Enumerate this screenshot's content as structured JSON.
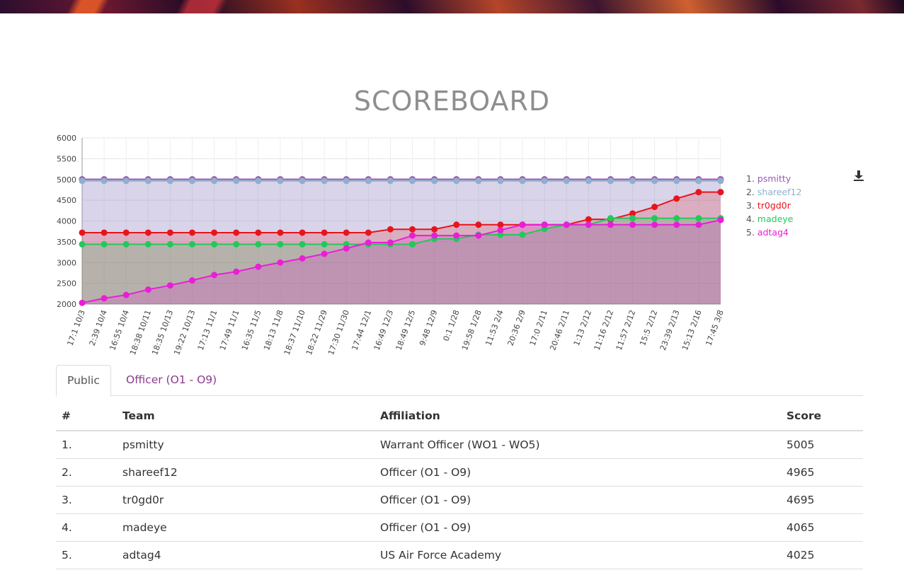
{
  "page": {
    "title": "SCOREBOARD"
  },
  "chart_data": {
    "type": "area",
    "categories": [
      "17:1 10/3",
      "2:39 10/4",
      "16:55 10/4",
      "18:38 10/11",
      "18:35 10/13",
      "19:22 10/13",
      "17:13 11/1",
      "17:49 11/1",
      "16:35 11/5",
      "18:13 11/8",
      "18:37 11/10",
      "18:22 11/29",
      "17:30 11/30",
      "17:44 12/1",
      "16:49 12/3",
      "18:49 12/5",
      "9:48 12/9",
      "0:1 1/28",
      "19:58 1/28",
      "11:53 2/4",
      "20:36 2/9",
      "17:0 2/11",
      "20:46 2/11",
      "1:13 2/12",
      "11:16 2/12",
      "11:57 2/12",
      "15:5 2/12",
      "23:39 2/13",
      "15:13 2/16",
      "17:45 3/8"
    ],
    "ylim": [
      2000,
      6000
    ],
    "yticks": [
      2000,
      2500,
      3000,
      3500,
      4000,
      4500,
      5000,
      5500,
      6000
    ],
    "grid": true,
    "legend_position": "right",
    "series": [
      {
        "name": "psmitty",
        "color": "#9b59b6",
        "values": [
          5005,
          5005,
          5005,
          5005,
          5005,
          5005,
          5005,
          5005,
          5005,
          5005,
          5005,
          5005,
          5005,
          5005,
          5005,
          5005,
          5005,
          5005,
          5005,
          5005,
          5005,
          5005,
          5005,
          5005,
          5005,
          5005,
          5005,
          5005,
          5005,
          5005
        ]
      },
      {
        "name": "shareef12",
        "color": "#8fb0cc",
        "values": [
          4965,
          4965,
          4965,
          4965,
          4965,
          4965,
          4965,
          4965,
          4965,
          4965,
          4965,
          4965,
          4965,
          4965,
          4965,
          4965,
          4965,
          4965,
          4965,
          4965,
          4965,
          4965,
          4965,
          4965,
          4965,
          4965,
          4965,
          4965,
          4965,
          4965
        ]
      },
      {
        "name": "tr0gd0r",
        "color": "#e8141c",
        "values": [
          3720,
          3720,
          3720,
          3720,
          3720,
          3720,
          3720,
          3720,
          3720,
          3720,
          3720,
          3720,
          3720,
          3720,
          3800,
          3800,
          3800,
          3910,
          3910,
          3910,
          3910,
          3910,
          3910,
          4040,
          4040,
          4180,
          4340,
          4540,
          4695,
          4695
        ]
      },
      {
        "name": "madeye",
        "color": "#22c95a",
        "values": [
          3440,
          3440,
          3440,
          3440,
          3440,
          3440,
          3440,
          3440,
          3440,
          3440,
          3440,
          3440,
          3440,
          3440,
          3440,
          3440,
          3570,
          3570,
          3670,
          3670,
          3670,
          3810,
          3910,
          3910,
          4065,
          4065,
          4065,
          4065,
          4065,
          4065
        ]
      },
      {
        "name": "adtag4",
        "color": "#e81ed8",
        "values": [
          2030,
          2140,
          2220,
          2350,
          2450,
          2570,
          2700,
          2780,
          2900,
          3000,
          3100,
          3210,
          3340,
          3480,
          3480,
          3650,
          3650,
          3650,
          3650,
          3780,
          3910,
          3910,
          3910,
          3910,
          3910,
          3910,
          3910,
          3910,
          3910,
          4025
        ]
      }
    ]
  },
  "legend": [
    {
      "rank": "1.",
      "name": "psmitty"
    },
    {
      "rank": "2.",
      "name": "shareef12"
    },
    {
      "rank": "3.",
      "name": "tr0gd0r"
    },
    {
      "rank": "4.",
      "name": "madeye"
    },
    {
      "rank": "5.",
      "name": "adtag4"
    }
  ],
  "icons": {
    "download": "download-icon"
  },
  "tabs": [
    {
      "label": "Public",
      "active": true
    },
    {
      "label": "Officer (O1 - O9)",
      "active": false
    }
  ],
  "table": {
    "headers": [
      "#",
      "Team",
      "Affiliation",
      "Score"
    ],
    "rows": [
      [
        "1.",
        "psmitty",
        "Warrant Officer (WO1 - WO5)",
        "5005"
      ],
      [
        "2.",
        "shareef12",
        "Officer (O1 - O9)",
        "4965"
      ],
      [
        "3.",
        "tr0gd0r",
        "Officer (O1 - O9)",
        "4695"
      ],
      [
        "4.",
        "madeye",
        "Officer (O1 - O9)",
        "4065"
      ],
      [
        "5.",
        "adtag4",
        "US Air Force Academy",
        "4025"
      ]
    ]
  }
}
